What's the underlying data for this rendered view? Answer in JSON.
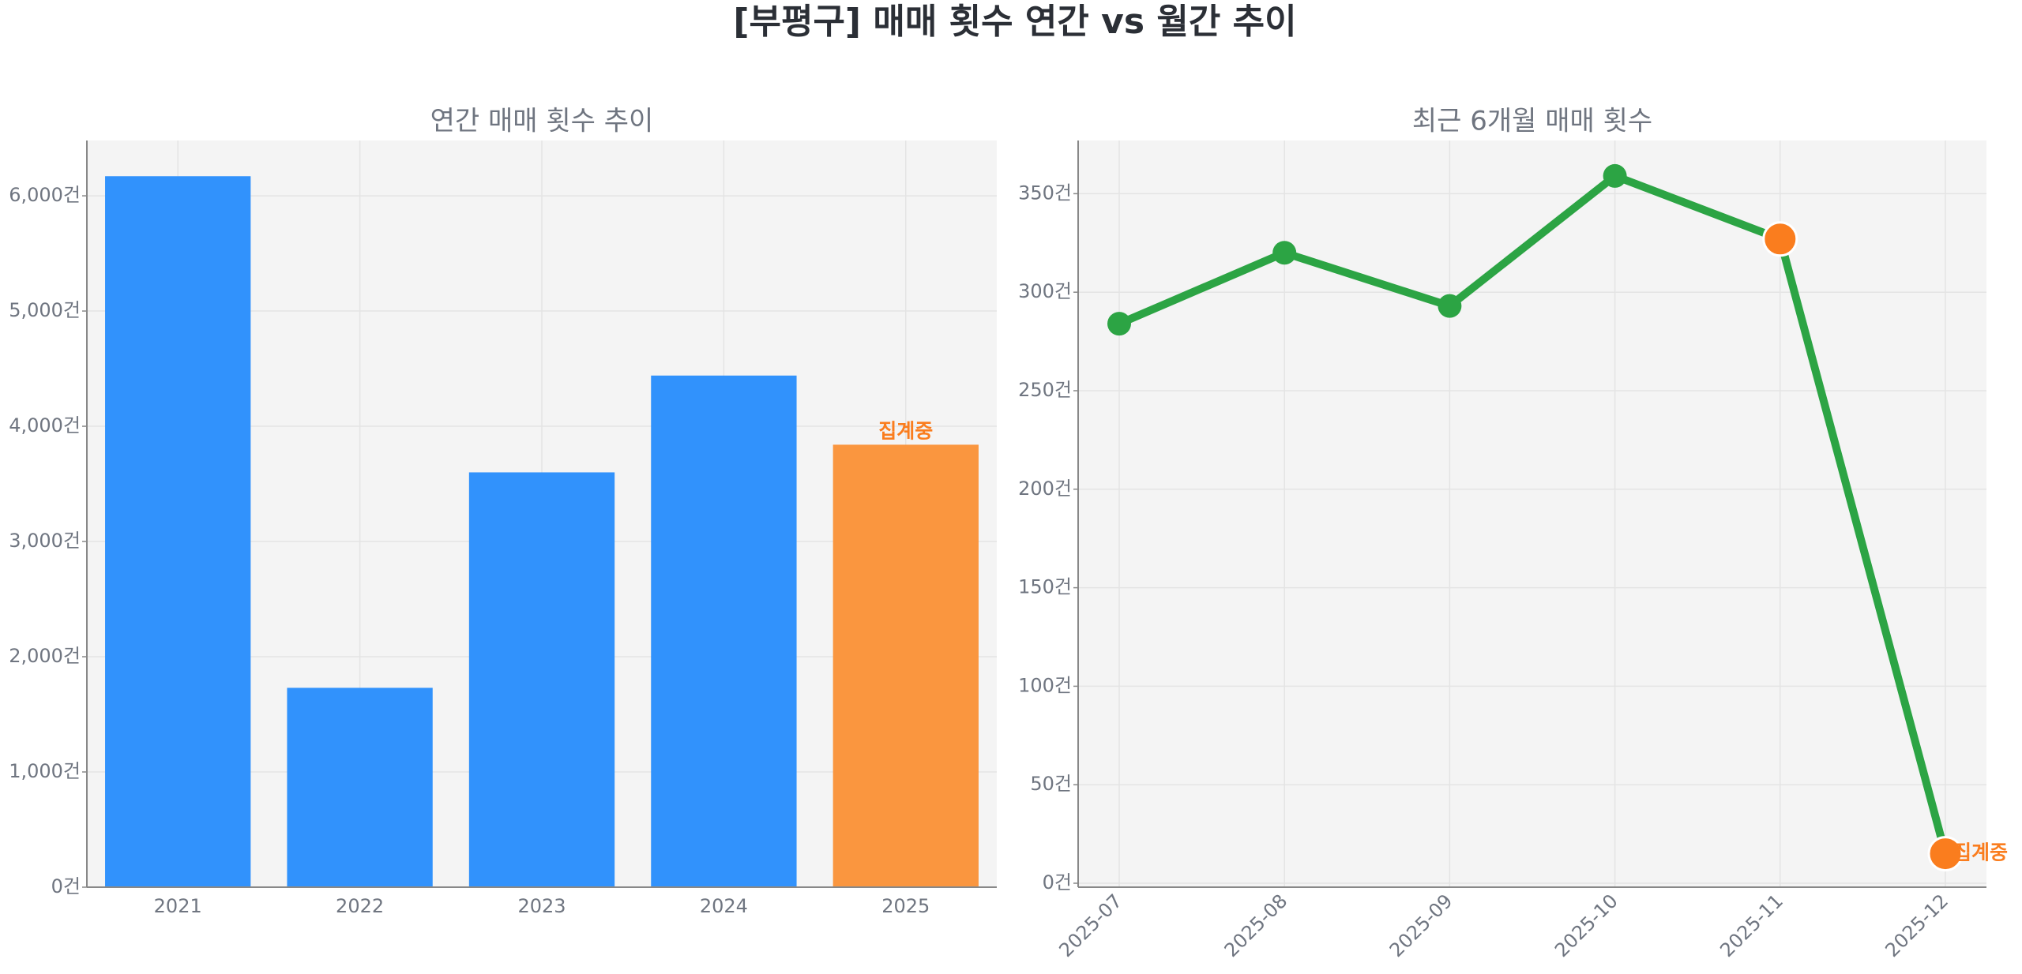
{
  "title": "[부평구] 매매 횟수 연간 vs 월간 추이",
  "chart_data": [
    {
      "type": "bar",
      "title": "연간 매매 횟수 추이",
      "categories": [
        "2021",
        "2022",
        "2023",
        "2024",
        "2025"
      ],
      "values": [
        6170,
        1730,
        3600,
        4440,
        3840
      ],
      "colors": [
        "#3192fc",
        "#3192fc",
        "#3192fc",
        "#3192fc",
        "#fa963f"
      ],
      "annotation": "집계중",
      "annotation_color": "#fa7d1e",
      "ylim": [
        0,
        6480
      ],
      "yticks": [
        {
          "value": 0,
          "label": "0건"
        },
        {
          "value": 1000,
          "label": "1,000건"
        },
        {
          "value": 2000,
          "label": "2,000건"
        },
        {
          "value": 3000,
          "label": "3,000건"
        },
        {
          "value": 4000,
          "label": "4,000건"
        },
        {
          "value": 5000,
          "label": "5,000건"
        },
        {
          "value": 6000,
          "label": "6,000건"
        }
      ],
      "grid": true
    },
    {
      "type": "line",
      "title": "최근 6개월 매매 횟수",
      "categories": [
        "2025-07",
        "2025-08",
        "2025-09",
        "2025-10",
        "2025-11",
        "2025-12"
      ],
      "values": [
        284,
        320,
        293,
        359,
        327,
        15
      ],
      "color": "#2ca444",
      "point_colors": [
        "#2ca444",
        "#2ca444",
        "#2ca444",
        "#2ca444",
        "#fa7d1e",
        "#fa7d1e"
      ],
      "annotation": "집계중",
      "annotation_color": "#fa7d1e",
      "ylim": [
        -2,
        377
      ],
      "yticks": [
        {
          "value": 0,
          "label": "0건"
        },
        {
          "value": 50,
          "label": "50건"
        },
        {
          "value": 100,
          "label": "100건"
        },
        {
          "value": 150,
          "label": "150건"
        },
        {
          "value": 200,
          "label": "200건"
        },
        {
          "value": 250,
          "label": "250건"
        },
        {
          "value": 300,
          "label": "300건"
        },
        {
          "value": 350,
          "label": "350건"
        }
      ],
      "grid": true
    }
  ]
}
